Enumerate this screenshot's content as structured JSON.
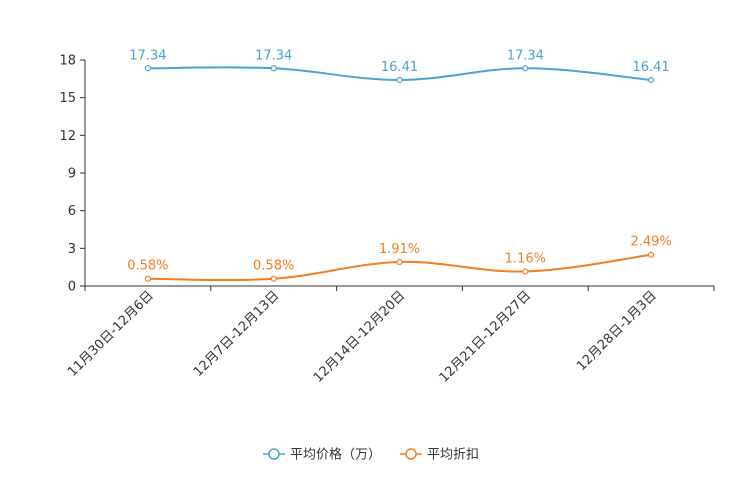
{
  "chart_data": {
    "type": "line",
    "title": "",
    "xlabel": "",
    "ylabel": "",
    "categories": [
      "11月30日-12月6日",
      "12月7日-12月13日",
      "12月14日-12月20日",
      "12月21日-12月27日",
      "12月28日-1月3日"
    ],
    "ylim": [
      0,
      18
    ],
    "yticks": [
      0,
      3,
      6,
      9,
      12,
      15,
      18
    ],
    "grid": false,
    "legend_position": "bottom-center",
    "series": [
      {
        "name": "平均价格（万）",
        "color": "#4ba3cf",
        "values": [
          17.34,
          17.34,
          16.41,
          17.34,
          16.41
        ],
        "labels": [
          "17.34",
          "17.34",
          "16.41",
          "17.34",
          "16.41"
        ]
      },
      {
        "name": "平均折扣",
        "color": "#f57d1f",
        "values": [
          0.58,
          0.58,
          1.91,
          1.16,
          2.49
        ],
        "labels": [
          "0.58%",
          "0.58%",
          "1.91%",
          "1.16%",
          "2.49%"
        ]
      }
    ]
  }
}
